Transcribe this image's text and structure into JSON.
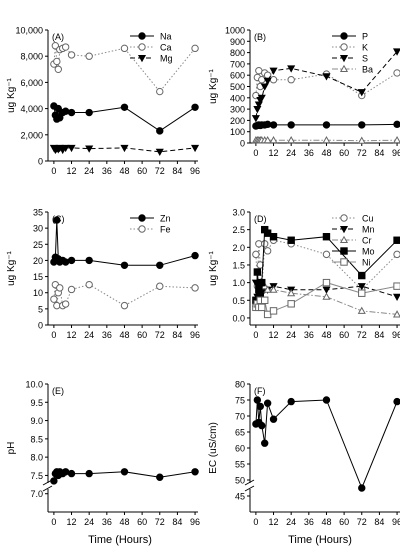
{
  "figure": {
    "shared_x_ticks": [
      "0",
      "12",
      "24",
      "36",
      "48",
      "60",
      "72",
      "84",
      "96"
    ],
    "shared_xlabel": "Time (Hours)"
  },
  "chart_data": [
    {
      "panel": "(A)",
      "type": "line",
      "ylabel": "ug Kg⁻¹",
      "ylim": [
        0,
        10000
      ],
      "yticks": [
        "0",
        "2,000",
        "4,000",
        "6,000",
        "8,000",
        "10,000"
      ],
      "xlim": [
        -4,
        98
      ],
      "legend_placement": "top-right",
      "series": [
        {
          "name": "Na",
          "marker": "circle-filled",
          "line": "solid",
          "color": "#000000",
          "points": [
            [
              0,
              4200
            ],
            [
              1,
              3500
            ],
            [
              2,
              3200
            ],
            [
              3,
              4000
            ],
            [
              4,
              3300
            ],
            [
              6,
              3700
            ],
            [
              8,
              3800
            ],
            [
              12,
              3700
            ],
            [
              24,
              3700
            ],
            [
              48,
              4100
            ],
            [
              72,
              2300
            ],
            [
              96,
              4100
            ]
          ]
        },
        {
          "name": "Ca",
          "marker": "circle-open",
          "line": "dotted",
          "color": "#888888",
          "points": [
            [
              0,
              7400
            ],
            [
              1,
              8800
            ],
            [
              2,
              7600
            ],
            [
              3,
              7000
            ],
            [
              4,
              8500
            ],
            [
              6,
              8600
            ],
            [
              8,
              8700
            ],
            [
              12,
              8100
            ],
            [
              24,
              8000
            ],
            [
              48,
              8600
            ],
            [
              72,
              5300
            ],
            [
              96,
              8600
            ]
          ]
        },
        {
          "name": "Mg",
          "marker": "triangle-down-filled",
          "line": "dashed",
          "color": "#000000",
          "points": [
            [
              0,
              1000
            ],
            [
              1,
              850
            ],
            [
              2,
              950
            ],
            [
              3,
              900
            ],
            [
              4,
              1000
            ],
            [
              6,
              850
            ],
            [
              8,
              1000
            ],
            [
              12,
              1000
            ],
            [
              24,
              950
            ],
            [
              48,
              1000
            ],
            [
              72,
              700
            ],
            [
              96,
              1000
            ]
          ]
        }
      ]
    },
    {
      "panel": "(B)",
      "type": "line",
      "ylabel": "ug Kg⁻¹",
      "ylim": [
        0,
        1000
      ],
      "yticks": [
        "0",
        "100",
        "200",
        "300",
        "400",
        "500",
        "600",
        "700",
        "800",
        "900",
        "1000"
      ],
      "xlim": [
        -4,
        98
      ],
      "legend_placement": "top-right",
      "series": [
        {
          "name": "P",
          "marker": "circle-filled",
          "line": "solid",
          "color": "#000000",
          "points": [
            [
              0,
              150
            ],
            [
              1,
              155
            ],
            [
              2,
              160
            ],
            [
              3,
              155
            ],
            [
              4,
              160
            ],
            [
              6,
              160
            ],
            [
              8,
              165
            ],
            [
              12,
              160
            ],
            [
              24,
              160
            ],
            [
              48,
              160
            ],
            [
              72,
              160
            ],
            [
              96,
              165
            ]
          ]
        },
        {
          "name": "K",
          "marker": "circle-open",
          "line": "dotted",
          "color": "#888888",
          "points": [
            [
              0,
              420
            ],
            [
              1,
              580
            ],
            [
              2,
              640
            ],
            [
              3,
              500
            ],
            [
              4,
              560
            ],
            [
              6,
              620
            ],
            [
              8,
              600
            ],
            [
              12,
              560
            ],
            [
              24,
              560
            ],
            [
              48,
              610
            ],
            [
              72,
              420
            ],
            [
              96,
              620
            ]
          ]
        },
        {
          "name": "S",
          "marker": "triangle-down-filled",
          "line": "dashed",
          "color": "#000000",
          "points": [
            [
              0,
              220
            ],
            [
              1,
              300
            ],
            [
              2,
              340
            ],
            [
              3,
              380
            ],
            [
              4,
              400
            ],
            [
              6,
              500
            ],
            [
              8,
              550
            ],
            [
              12,
              640
            ],
            [
              24,
              660
            ],
            [
              48,
              590
            ],
            [
              72,
              450
            ],
            [
              96,
              810
            ]
          ]
        },
        {
          "name": "Ba",
          "marker": "triangle-up-open",
          "line": "dashdot",
          "color": "#888888",
          "points": [
            [
              0,
              25
            ],
            [
              1,
              25
            ],
            [
              2,
              25
            ],
            [
              3,
              25
            ],
            [
              4,
              25
            ],
            [
              6,
              25
            ],
            [
              8,
              25
            ],
            [
              12,
              25
            ],
            [
              24,
              25
            ],
            [
              48,
              25
            ],
            [
              72,
              20
            ],
            [
              96,
              25
            ]
          ]
        }
      ]
    },
    {
      "panel": "(C)",
      "type": "line",
      "ylabel": "ug Kg⁻¹",
      "ylim": [
        0,
        35
      ],
      "yticks": [
        "0",
        "5",
        "10",
        "15",
        "20",
        "25",
        "30",
        "35"
      ],
      "xlim": [
        -4,
        98
      ],
      "legend_placement": "top-right",
      "series": [
        {
          "name": "Zn",
          "marker": "circle-filled",
          "line": "solid",
          "color": "#000000",
          "points": [
            [
              0,
              19.5
            ],
            [
              1,
              21
            ],
            [
              2,
              32.5
            ],
            [
              3,
              20.5
            ],
            [
              4,
              19.5
            ],
            [
              6,
              20
            ],
            [
              8,
              19.5
            ],
            [
              12,
              20
            ],
            [
              24,
              20
            ],
            [
              48,
              18.5
            ],
            [
              72,
              18.5
            ],
            [
              96,
              21.5
            ]
          ]
        },
        {
          "name": "Fe",
          "marker": "circle-open",
          "line": "dotted",
          "color": "#888888",
          "points": [
            [
              0,
              8
            ],
            [
              1,
              12.5
            ],
            [
              2,
              6
            ],
            [
              3,
              10
            ],
            [
              4,
              11.5
            ],
            [
              6,
              6
            ],
            [
              8,
              6.5
            ],
            [
              12,
              11
            ],
            [
              24,
              12.5
            ],
            [
              48,
              6
            ],
            [
              72,
              12
            ],
            [
              96,
              11.5
            ]
          ]
        }
      ]
    },
    {
      "panel": "(D)",
      "type": "line",
      "ylabel": "ug Kg⁻¹",
      "ylim": [
        -0.2,
        3.0
      ],
      "yticks": [
        "0.0",
        "0.5",
        "1.0",
        "1.5",
        "2.0",
        "2.5",
        "3.0"
      ],
      "xlim": [
        -4,
        98
      ],
      "legend_placement": "top-right",
      "series": [
        {
          "name": "Cu",
          "marker": "circle-open",
          "line": "dotted",
          "color": "#888888",
          "points": [
            [
              0,
              1.8
            ],
            [
              1,
              0.9
            ],
            [
              2,
              2.1
            ],
            [
              3,
              1.5
            ],
            [
              4,
              0.8
            ],
            [
              6,
              2.1
            ],
            [
              8,
              1.9
            ],
            [
              12,
              2.2
            ],
            [
              24,
              2.1
            ],
            [
              48,
              1.8
            ],
            [
              72,
              0.8
            ],
            [
              96,
              1.8
            ]
          ]
        },
        {
          "name": "Mn",
          "marker": "triangle-down-filled",
          "line": "dashed",
          "color": "#000000",
          "points": [
            [
              0,
              1.0
            ],
            [
              1,
              0.6
            ],
            [
              2,
              0.9
            ],
            [
              3,
              0.5
            ],
            [
              4,
              0.7
            ],
            [
              6,
              0.8
            ],
            [
              8,
              0.8
            ],
            [
              12,
              0.9
            ],
            [
              24,
              0.8
            ],
            [
              48,
              0.8
            ],
            [
              72,
              0.9
            ],
            [
              96,
              0.6
            ]
          ]
        },
        {
          "name": "Cr",
          "marker": "triangle-up-open",
          "line": "dashdot",
          "color": "#888888",
          "points": [
            [
              0,
              0.4
            ],
            [
              1,
              0.3
            ],
            [
              2,
              0.4
            ],
            [
              3,
              0.7
            ],
            [
              4,
              0.9
            ],
            [
              6,
              0.9
            ],
            [
              8,
              0.8
            ],
            [
              12,
              0.8
            ],
            [
              24,
              0.7
            ],
            [
              48,
              0.6
            ],
            [
              72,
              0.2
            ],
            [
              96,
              0.1
            ]
          ]
        },
        {
          "name": "Mo",
          "marker": "square-filled",
          "line": "solid",
          "color": "#000000",
          "points": [
            [
              0,
              0.5
            ],
            [
              1,
              1.3
            ],
            [
              2,
              0.8
            ],
            [
              3,
              0.6
            ],
            [
              4,
              1.0
            ],
            [
              6,
              2.5
            ],
            [
              8,
              2.4
            ],
            [
              12,
              2.3
            ],
            [
              24,
              2.2
            ],
            [
              48,
              2.3
            ],
            [
              72,
              1.2
            ],
            [
              96,
              2.2
            ]
          ]
        },
        {
          "name": "Ni",
          "marker": "square-open",
          "line": "solid",
          "color": "#888888",
          "points": [
            [
              0,
              0.3
            ],
            [
              1,
              0.4
            ],
            [
              2,
              0.3
            ],
            [
              3,
              0.5
            ],
            [
              4,
              0.3
            ],
            [
              6,
              0.5
            ],
            [
              8,
              0.1
            ],
            [
              12,
              0.2
            ],
            [
              24,
              0.4
            ],
            [
              48,
              1.0
            ],
            [
              72,
              0.7
            ],
            [
              96,
              0.9
            ]
          ]
        }
      ]
    },
    {
      "panel": "(E)",
      "type": "line",
      "ylabel": "pH",
      "ylim": [
        6.5,
        10.0
      ],
      "yticks": [
        "7.0",
        "7.5",
        "8.0",
        "8.5",
        "9.0",
        "9.5",
        "10.0"
      ],
      "axis_break": true,
      "xlim": [
        -4,
        98
      ],
      "series": [
        {
          "name": "",
          "marker": "circle-filled",
          "line": "solid",
          "color": "#000000",
          "points": [
            [
              0,
              7.35
            ],
            [
              1,
              7.55
            ],
            [
              2,
              7.6
            ],
            [
              3,
              7.5
            ],
            [
              4,
              7.6
            ],
            [
              6,
              7.55
            ],
            [
              8,
              7.6
            ],
            [
              12,
              7.55
            ],
            [
              24,
              7.55
            ],
            [
              48,
              7.6
            ],
            [
              72,
              7.45
            ],
            [
              96,
              7.6
            ]
          ]
        }
      ]
    },
    {
      "panel": "(F)",
      "type": "line",
      "ylabel": "EC (uS/cm)",
      "ylim": [
        40,
        80
      ],
      "yticks": [
        "45",
        "50",
        "55",
        "60",
        "65",
        "70",
        "75",
        "80"
      ],
      "axis_break": true,
      "xlim": [
        -4,
        98
      ],
      "series": [
        {
          "name": "",
          "marker": "circle-filled",
          "line": "solid",
          "color": "#000000",
          "points": [
            [
              0,
              67.5
            ],
            [
              1,
              75
            ],
            [
              2,
              68
            ],
            [
              3,
              73
            ],
            [
              4,
              67
            ],
            [
              6,
              61.5
            ],
            [
              8,
              74
            ],
            [
              12,
              69
            ],
            [
              24,
              74.5
            ],
            [
              48,
              75
            ],
            [
              72,
              47.5
            ],
            [
              96,
              74.5
            ]
          ]
        }
      ]
    }
  ]
}
